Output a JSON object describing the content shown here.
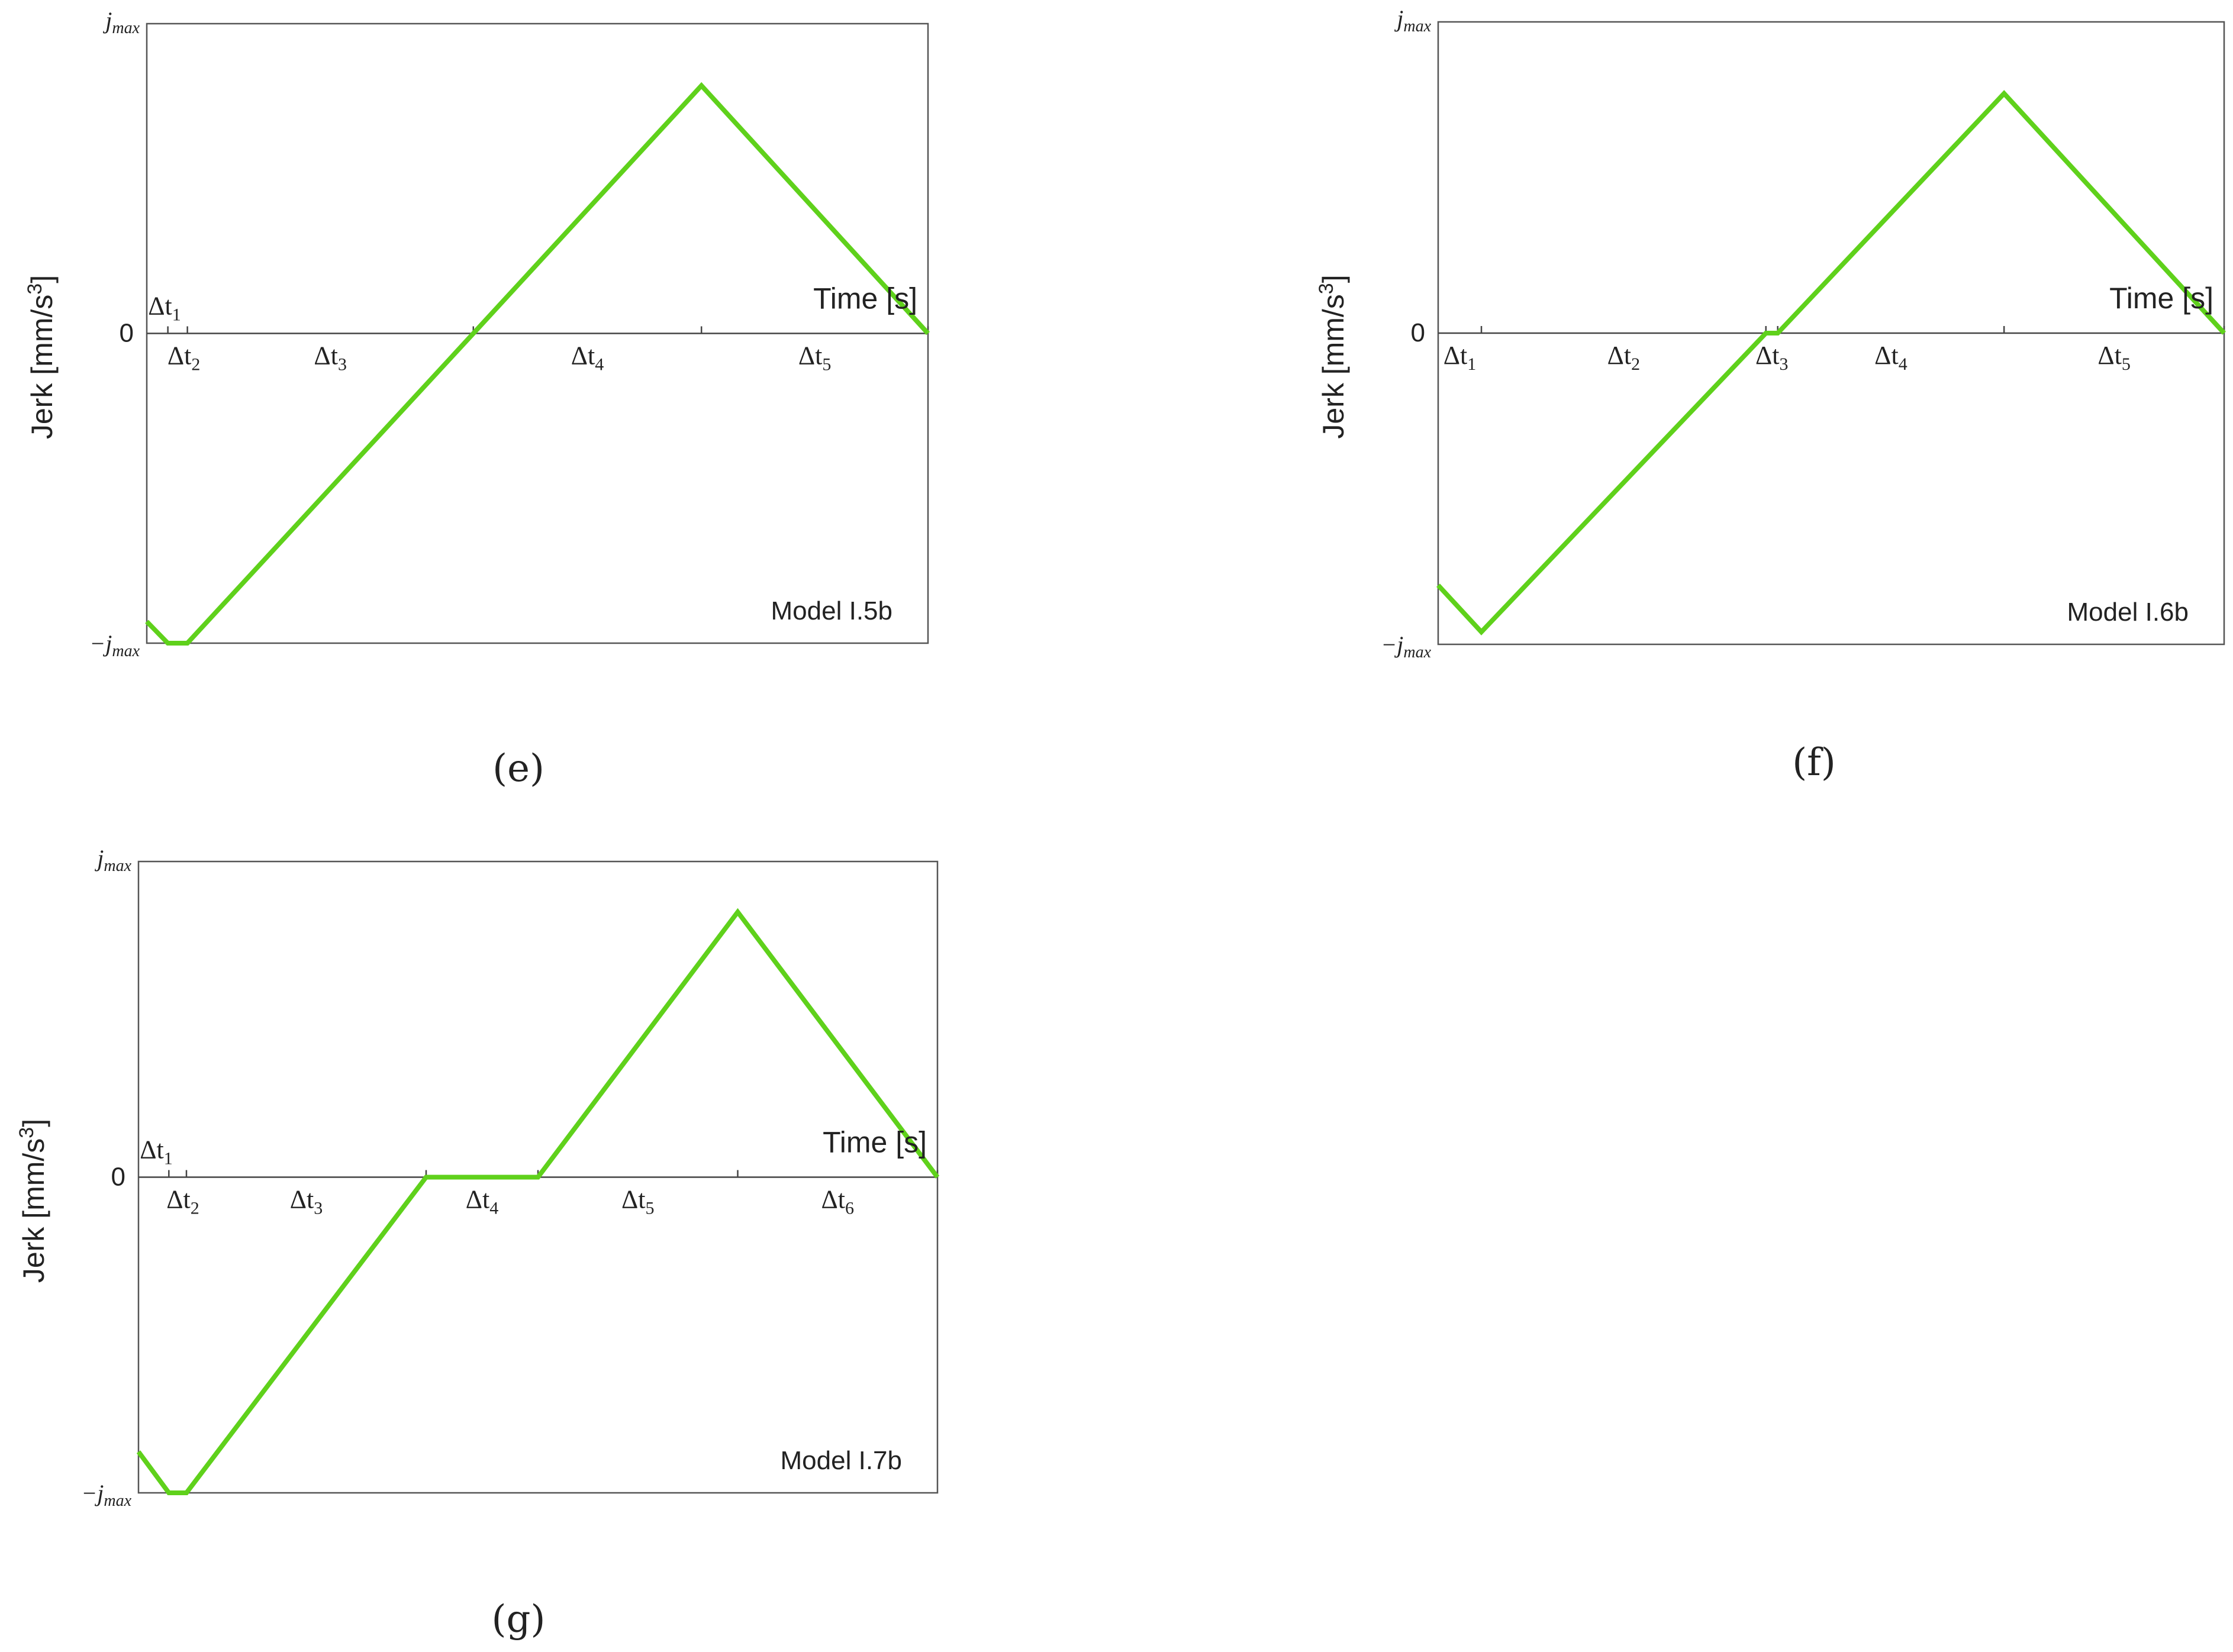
{
  "chart_data": [
    {
      "type": "line",
      "panel": "(e)",
      "panel_letter": "e",
      "model": "Model I.5b",
      "xlabel": "Time [s]",
      "ylabel": "Jerk [mm/s",
      "ylabel_sup": "3",
      "ylabel_close": "]",
      "ytick_zero": "0",
      "ytick_max": "j",
      "ytick_max_sub": "max",
      "ytick_min": "−j",
      "ytick_min_sub": "max",
      "ylim": [
        -1,
        1
      ],
      "xlim": [
        0,
        1
      ],
      "interval_boundaries": [
        0.027,
        0.052,
        0.418,
        0.71,
        1.0
      ],
      "intervals": [
        {
          "name": "Δt",
          "sub": "1",
          "position": "above"
        },
        {
          "name": "Δt",
          "sub": "2",
          "position": "below"
        },
        {
          "name": "Δt",
          "sub": "3",
          "position": "below"
        },
        {
          "name": "Δt",
          "sub": "4",
          "position": "below"
        },
        {
          "name": "Δt",
          "sub": "5",
          "position": "below"
        }
      ],
      "series": [
        {
          "x": [
            0,
            0.027,
            0.052,
            0.418,
            0.71,
            1.0
          ],
          "y": [
            -0.93,
            -1.0,
            -1.0,
            0.0,
            0.8,
            0.0
          ]
        }
      ]
    },
    {
      "type": "line",
      "panel": "(f)",
      "panel_letter": "f",
      "model": "Model I.6b",
      "xlabel": "Time [s]",
      "ylabel": "Jerk [mm/s",
      "ylabel_sup": "3",
      "ylabel_close": "]",
      "ytick_zero": "0",
      "ytick_max": "j",
      "ytick_max_sub": "max",
      "ytick_min": "−j",
      "ytick_min_sub": "max",
      "ylim": [
        -1,
        1
      ],
      "xlim": [
        0,
        1
      ],
      "interval_boundaries": [
        0.055,
        0.417,
        0.432,
        0.72,
        1.0
      ],
      "intervals": [
        {
          "name": "Δt",
          "sub": "1",
          "position": "below"
        },
        {
          "name": "Δt",
          "sub": "2",
          "position": "below"
        },
        {
          "name": "Δt",
          "sub": "3",
          "position": "below"
        },
        {
          "name": "Δt",
          "sub": "4",
          "position": "below"
        },
        {
          "name": "Δt",
          "sub": "5",
          "position": "below"
        }
      ],
      "series": [
        {
          "x": [
            0,
            0.055,
            0.417,
            0.432,
            0.72,
            1.0
          ],
          "y": [
            -0.81,
            -0.96,
            0.0,
            0.0,
            0.77,
            0.0
          ]
        }
      ]
    },
    {
      "type": "line",
      "panel": "(g)",
      "panel_letter": "g",
      "model": "Model I.7b",
      "xlabel": "Time [s]",
      "ylabel": "Jerk [mm/s",
      "ylabel_sup": "3",
      "ylabel_close": "]",
      "ytick_zero": "0",
      "ytick_max": "j",
      "ytick_max_sub": "max",
      "ytick_min": "−j",
      "ytick_min_sub": "max",
      "ylim": [
        -1,
        1
      ],
      "xlim": [
        0,
        1
      ],
      "interval_boundaries": [
        0.038,
        0.06,
        0.36,
        0.5,
        0.75,
        1.0
      ],
      "intervals": [
        {
          "name": "Δt",
          "sub": "1",
          "position": "above"
        },
        {
          "name": "Δt",
          "sub": "2",
          "position": "below"
        },
        {
          "name": "Δt",
          "sub": "3",
          "position": "below"
        },
        {
          "name": "Δt",
          "sub": "4",
          "position": "below"
        },
        {
          "name": "Δt",
          "sub": "5",
          "position": "below"
        },
        {
          "name": "Δt",
          "sub": "6",
          "position": "below"
        }
      ],
      "series": [
        {
          "x": [
            0,
            0.038,
            0.06,
            0.36,
            0.5,
            0.75,
            1.0
          ],
          "y": [
            -0.87,
            -1.0,
            -1.0,
            0.0,
            0.0,
            0.84,
            0.0
          ]
        }
      ]
    }
  ],
  "colors": {
    "line": "#5fd11b",
    "frame": "#555555",
    "zero_axis": "#444444",
    "text": "#222222"
  }
}
